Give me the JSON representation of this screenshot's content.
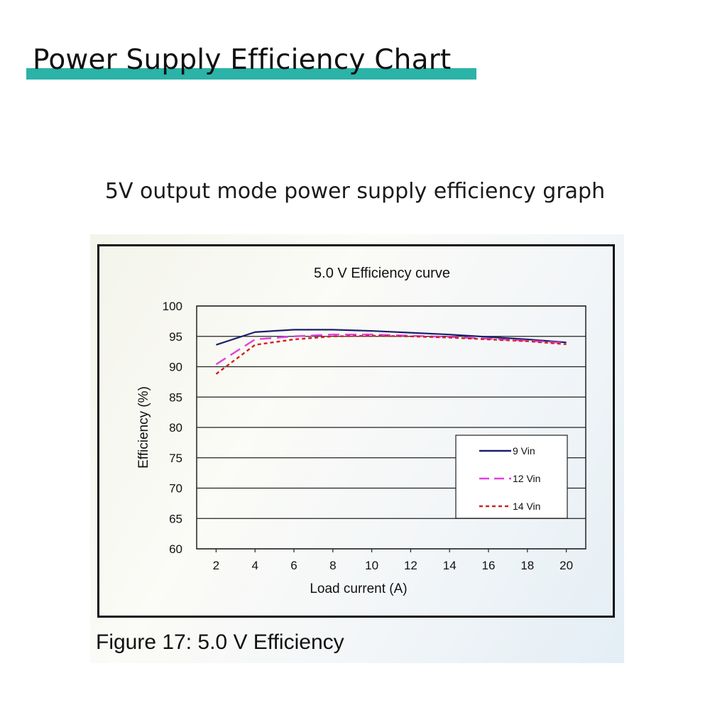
{
  "header": {
    "title": "Power Supply Efficiency Chart",
    "subtitle": "5V output mode power supply efficiency graph",
    "accent_color": "#2bb3a8"
  },
  "figure": {
    "caption": "Figure 17: 5.0 V Efficiency"
  },
  "chart_data": {
    "type": "line",
    "title": "5.0 V Efficiency curve",
    "xlabel": "Load current (A)",
    "ylabel": "Efficiency (%)",
    "xlim": [
      1,
      21
    ],
    "ylim": [
      60,
      100
    ],
    "x_ticks": [
      2,
      4,
      6,
      8,
      10,
      12,
      14,
      16,
      18,
      20
    ],
    "y_ticks": [
      60,
      65,
      70,
      75,
      80,
      85,
      90,
      95,
      100
    ],
    "grid": "horizontal",
    "legend_position": "bottom-right",
    "series": [
      {
        "name": "9 Vin",
        "color": "#1a1f6e",
        "style": "solid",
        "x": [
          2,
          4,
          6,
          8,
          10,
          12,
          14,
          16,
          18,
          20
        ],
        "values": [
          93.6,
          95.7,
          96.1,
          96.1,
          95.9,
          95.6,
          95.3,
          94.9,
          94.5,
          94.0
        ]
      },
      {
        "name": "12 Vin",
        "color": "#e040e0",
        "style": "dashed",
        "x": [
          2,
          4,
          6,
          8,
          10,
          12,
          14,
          16,
          18,
          20
        ],
        "values": [
          90.4,
          94.5,
          95.0,
          95.3,
          95.3,
          95.1,
          94.9,
          94.6,
          94.3,
          93.9
        ]
      },
      {
        "name": "14 Vin",
        "color": "#d42020",
        "style": "dotted",
        "x": [
          2,
          4,
          6,
          8,
          10,
          12,
          14,
          16,
          18,
          20
        ],
        "values": [
          88.8,
          93.6,
          94.5,
          95.0,
          95.1,
          95.0,
          94.8,
          94.5,
          94.2,
          93.7
        ]
      }
    ]
  }
}
